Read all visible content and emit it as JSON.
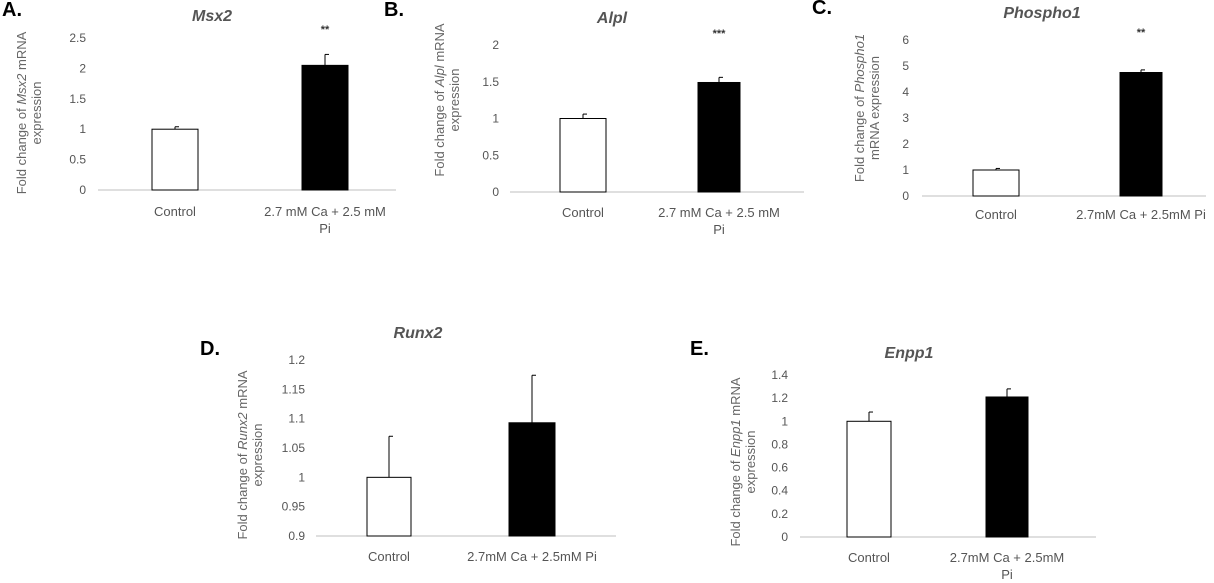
{
  "chart_data": [
    {
      "panel": "A.",
      "type": "bar",
      "title": "Msx2",
      "ylabel_lines": [
        [
          {
            "t": "Fold change of "
          },
          {
            "t": "Msx2",
            "i": true
          },
          {
            "t": " mRNA"
          }
        ],
        [
          {
            "t": "expression"
          }
        ]
      ],
      "ylim": [
        0,
        2.5
      ],
      "yticks": [
        "0",
        "0.5",
        "1",
        "1.5",
        "2",
        "2.5"
      ],
      "categories": [
        [
          "Control"
        ],
        [
          "2.7 mM Ca + 2.5 mM",
          "Pi"
        ]
      ],
      "values": [
        1.0,
        2.05
      ],
      "errors": [
        0.04,
        0.18
      ],
      "colors": [
        "#ffffff",
        "#000000"
      ],
      "significance": [
        "",
        "**"
      ]
    },
    {
      "panel": "B.",
      "type": "bar",
      "title": "Alpl",
      "ylabel_lines": [
        [
          {
            "t": "Fold change of "
          },
          {
            "t": "Alpl",
            "i": true
          },
          {
            "t": " mRNA"
          }
        ],
        [
          {
            "t": "expression"
          }
        ]
      ],
      "ylim": [
        0,
        2
      ],
      "yticks": [
        "0",
        "0.5",
        "1",
        "1.5",
        "2"
      ],
      "categories": [
        [
          "Control"
        ],
        [
          "2.7 mM Ca + 2.5 mM",
          "Pi"
        ]
      ],
      "values": [
        1.0,
        1.49
      ],
      "errors": [
        0.06,
        0.07
      ],
      "colors": [
        "#ffffff",
        "#000000"
      ],
      "significance": [
        "",
        "***"
      ]
    },
    {
      "panel": "C.",
      "type": "bar",
      "title": "Phospho1",
      "ylabel_lines": [
        [
          {
            "t": "Fold change of "
          },
          {
            "t": "Phospho1",
            "i": true
          }
        ],
        [
          {
            "t": "mRNA expression"
          }
        ]
      ],
      "ylim": [
        0,
        6
      ],
      "yticks": [
        "0",
        "1",
        "2",
        "3",
        "4",
        "5",
        "6"
      ],
      "categories": [
        [
          "Control"
        ],
        [
          "2.7mM Ca + 2.5mM Pi"
        ]
      ],
      "values": [
        1.0,
        4.75
      ],
      "errors": [
        0.06,
        0.1
      ],
      "colors": [
        "#ffffff",
        "#000000"
      ],
      "significance": [
        "",
        "**"
      ]
    },
    {
      "panel": "D.",
      "type": "bar",
      "title": "Runx2",
      "ylabel_lines": [
        [
          {
            "t": "Fold change of "
          },
          {
            "t": "Runx2",
            "i": true
          },
          {
            "t": " mRNA"
          }
        ],
        [
          {
            "t": "expression"
          }
        ]
      ],
      "ylim": [
        0.9,
        1.2
      ],
      "yticks": [
        "0.9",
        "0.95",
        "1",
        "1.05",
        "1.1",
        "1.15",
        "1.2"
      ],
      "categories": [
        [
          "Control"
        ],
        [
          "2.7mM Ca + 2.5mM Pi"
        ]
      ],
      "values": [
        1.0,
        1.093
      ],
      "errors": [
        0.07,
        0.081
      ],
      "colors": [
        "#ffffff",
        "#000000"
      ],
      "significance": [
        "",
        ""
      ]
    },
    {
      "panel": "E.",
      "type": "bar",
      "title": "Enpp1",
      "ylabel_lines": [
        [
          {
            "t": "Fold change of "
          },
          {
            "t": "Enpp1",
            "i": true
          },
          {
            "t": " mRNA"
          }
        ],
        [
          {
            "t": "expression"
          }
        ]
      ],
      "ylim": [
        0,
        1.4
      ],
      "yticks": [
        "0",
        "0.2",
        "0.4",
        "0.6",
        "0.8",
        "1",
        "1.2",
        "1.4"
      ],
      "categories": [
        [
          "Control"
        ],
        [
          "2.7mM Ca + 2.5mM",
          "Pi"
        ]
      ],
      "values": [
        1.0,
        1.21
      ],
      "errors": [
        0.08,
        0.07
      ],
      "colors": [
        "#ffffff",
        "#000000"
      ],
      "significance": [
        "",
        ""
      ]
    }
  ]
}
